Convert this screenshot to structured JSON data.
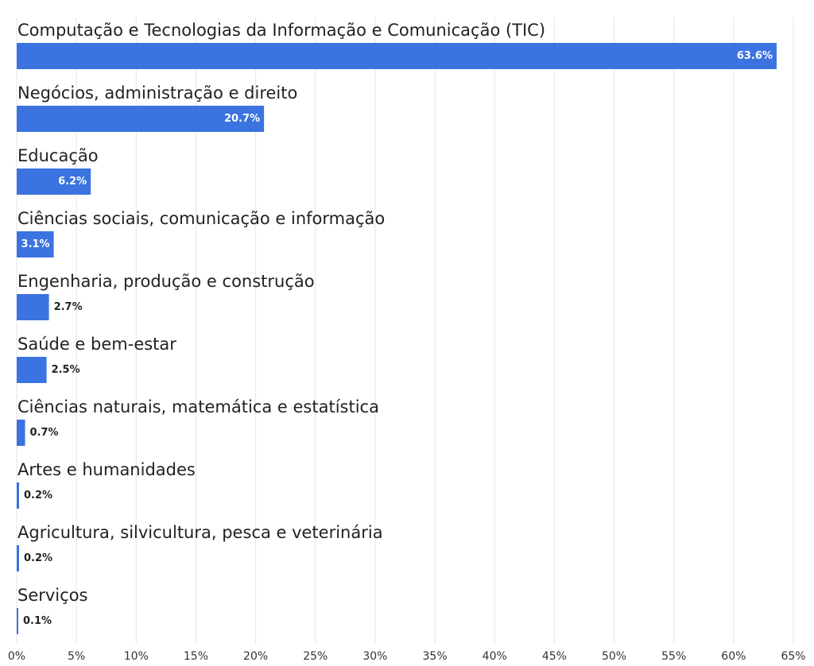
{
  "chart_data": {
    "type": "barh",
    "categories": [
      "Computação e Tecnologias da Informação e Comunicação (TIC)",
      "Negócios, administração e direito",
      "Educação",
      "Ciências sociais, comunicação e informação",
      "Engenharia, produção e construção",
      "Saúde e bem-estar",
      "Ciências naturais, matemática e estatística",
      "Artes e humanidades",
      "Agricultura, silvicultura, pesca e veterinária",
      "Serviços"
    ],
    "values": [
      63.6,
      20.7,
      6.2,
      3.1,
      2.7,
      2.5,
      0.7,
      0.2,
      0.2,
      0.1
    ],
    "value_labels": [
      "63.6%",
      "20.7%",
      "6.2%",
      "3.1%",
      "2.7%",
      "2.5%",
      "0.7%",
      "0.2%",
      "0.2%",
      "0.1%"
    ],
    "color": "#3b73e0",
    "xlim": [
      0,
      65
    ],
    "xticks": [
      {
        "value": 0,
        "label": "0%"
      },
      {
        "value": 5,
        "label": "5%"
      },
      {
        "value": 10,
        "label": "10%"
      },
      {
        "value": 15,
        "label": "15%"
      },
      {
        "value": 20,
        "label": "20%"
      },
      {
        "value": 25,
        "label": "25%"
      },
      {
        "value": 30,
        "label": "30%"
      },
      {
        "value": 35,
        "label": "35%"
      },
      {
        "value": 40,
        "label": "40%"
      },
      {
        "value": 45,
        "label": "45%"
      },
      {
        "value": 50,
        "label": "50%"
      },
      {
        "value": 55,
        "label": "55%"
      },
      {
        "value": 60,
        "label": "60%"
      },
      {
        "value": 65,
        "label": "65%"
      }
    ],
    "grid": true
  }
}
